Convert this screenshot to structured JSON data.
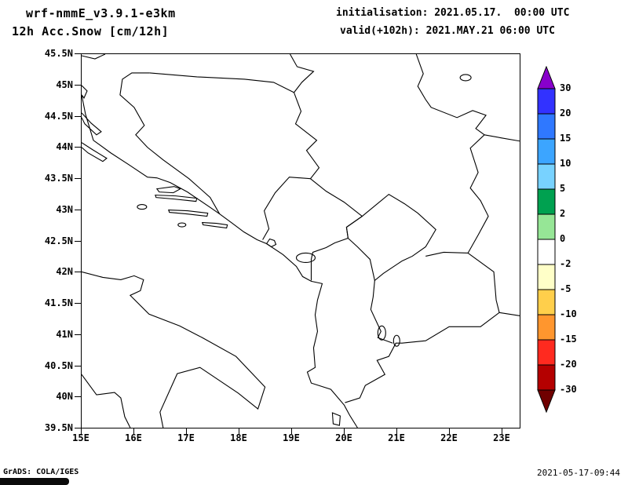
{
  "header": {
    "model_title": "wrf-nmmE_v3.9.1-e3km",
    "field_title": "12h Acc.Snow [cm/12h]",
    "init_line": "initialisation: 2021.05.17.  00:00 UTC",
    "valid_line": "valid(+102h): 2021.MAY.21 06:00 UTC"
  },
  "map": {
    "y_tick_labels": [
      "45.5N",
      "45N",
      "44.5N",
      "44N",
      "43.5N",
      "43N",
      "42.5N",
      "42N",
      "41.5N",
      "41N",
      "40.5N",
      "40N",
      "39.5N"
    ],
    "x_tick_labels": [
      "15E",
      "16E",
      "17E",
      "18E",
      "19E",
      "20E",
      "21E",
      "22E",
      "23E"
    ]
  },
  "colorbar": {
    "tick_labels": [
      "30",
      "20",
      "15",
      "10",
      "5",
      "2",
      "0",
      "-2",
      "-5",
      "-10",
      "-15",
      "-20",
      "-30"
    ],
    "above_color": "#8800cc",
    "band_colors": [
      "#3232ff",
      "#2f78ff",
      "#3ca5ff",
      "#78d2ff",
      "#00a150",
      "#96e696",
      "#ffffff",
      "#ffffc8",
      "#ffcf4b",
      "#ff962e",
      "#ff2a1f",
      "#b40000"
    ],
    "below_color": "#700000"
  },
  "footer": {
    "credit": "GrADS: COLA/IGES",
    "timestamp": "2021-05-17-09:44"
  }
}
